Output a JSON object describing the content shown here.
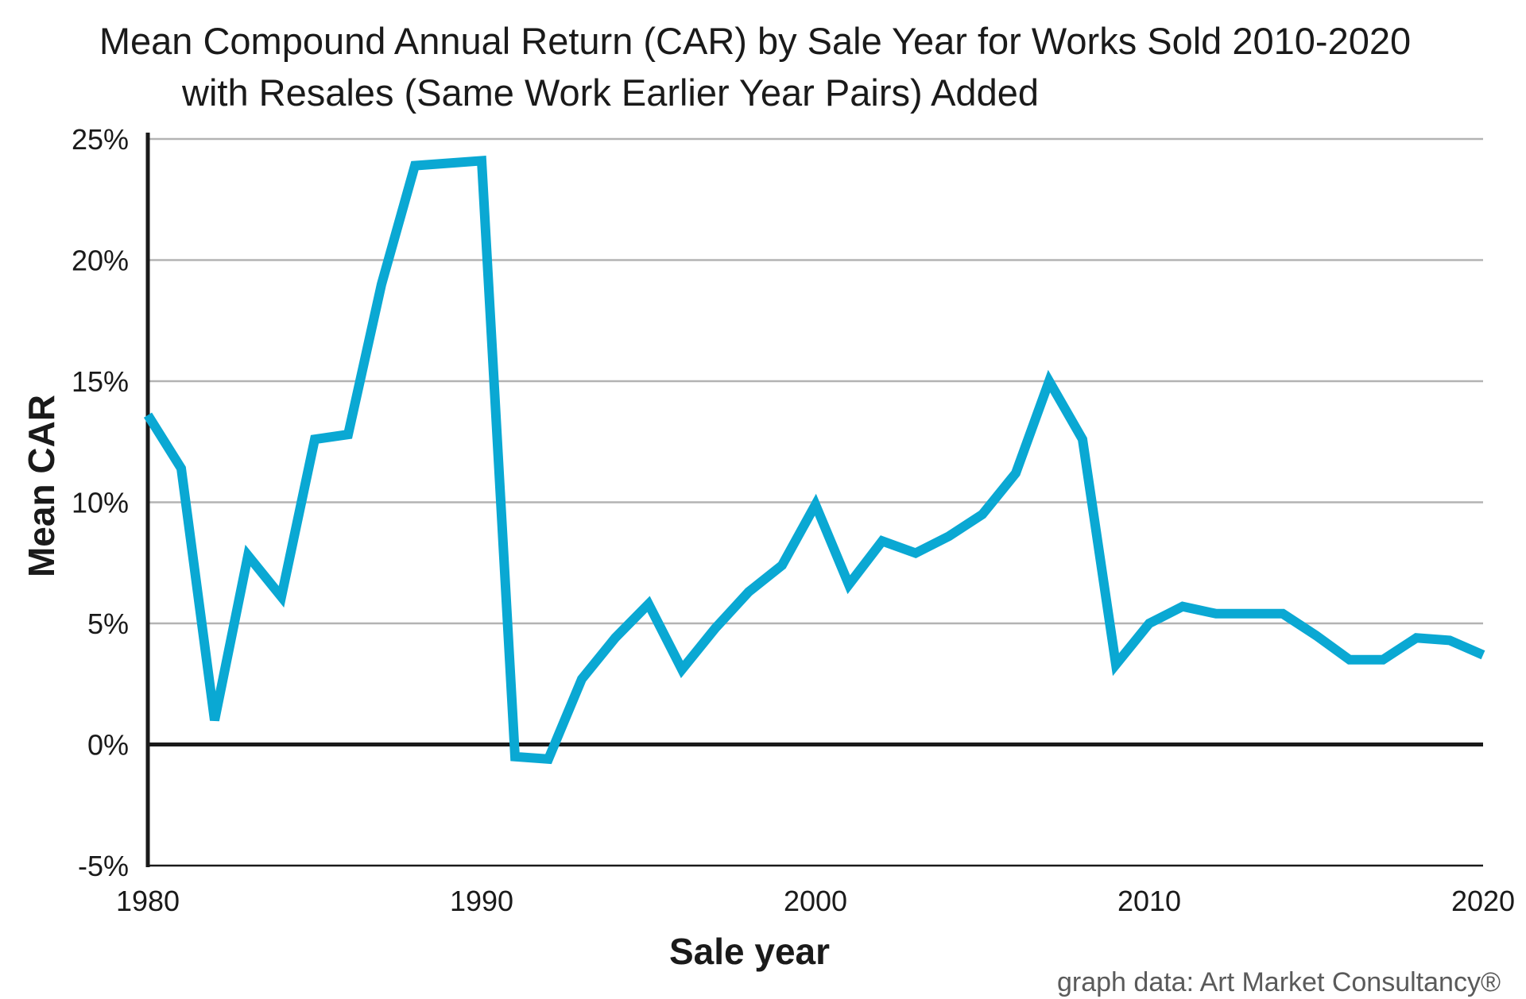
{
  "chart_data": {
    "type": "line",
    "title": "Mean Compound Annual Return (CAR)  by Sale Year for Works Sold 2010-2020",
    "subtitle": "with Resales (Same Work Earlier Year Pairs) Added",
    "xlabel": "Sale year",
    "ylabel": "Mean CAR",
    "xlim": [
      1980,
      2020
    ],
    "ylim": [
      -5,
      25
    ],
    "x_ticks": [
      1980,
      1990,
      2000,
      2010,
      2020
    ],
    "y_ticks": [
      -5,
      0,
      5,
      10,
      15,
      20,
      25
    ],
    "y_tick_labels": [
      "-5%",
      "0%",
      "5%",
      "10%",
      "15%",
      "20%",
      "25%"
    ],
    "grid": true,
    "credit": "graph data: Art Market Consultancy®",
    "line_color": "#0aa8d3",
    "series": [
      {
        "name": "Mean CAR",
        "x": [
          1980,
          1981,
          1982,
          1983,
          1984,
          1985,
          1986,
          1987,
          1988,
          1989,
          1990,
          1991,
          1992,
          1993,
          1994,
          1995,
          1996,
          1997,
          1998,
          1999,
          2000,
          2001,
          2002,
          2003,
          2004,
          2005,
          2006,
          2007,
          2008,
          2009,
          2010,
          2011,
          2012,
          2013,
          2014,
          2015,
          2016,
          2017,
          2018,
          2019,
          2020
        ],
        "values": [
          13.6,
          11.4,
          1.0,
          7.8,
          6.1,
          12.6,
          12.8,
          19.0,
          23.9,
          24.0,
          24.1,
          -0.5,
          -0.6,
          2.7,
          4.4,
          5.8,
          3.1,
          4.8,
          6.3,
          7.4,
          9.9,
          6.6,
          8.4,
          7.9,
          8.6,
          9.5,
          11.2,
          15.0,
          12.6,
          3.3,
          5.0,
          5.7,
          5.4,
          5.4,
          5.4,
          4.5,
          3.5,
          3.5,
          4.4,
          4.3,
          3.7
        ]
      }
    ]
  }
}
